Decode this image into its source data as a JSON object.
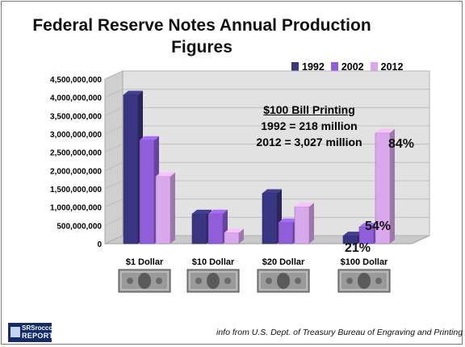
{
  "chart_data": {
    "type": "bar",
    "title_line1": "Federal Reserve Notes Annual Production",
    "title_line2": "Figures",
    "categories": [
      "$1 Dollar",
      "$10 Dollar",
      "$20 Dollar",
      "$100 Dollar"
    ],
    "series": [
      {
        "name": "1992",
        "color": "#3a3580",
        "values": [
          4070000000,
          820000000,
          1380000000,
          218000000
        ]
      },
      {
        "name": "2002",
        "color": "#8f5ed8",
        "values": [
          2830000000,
          820000000,
          580000000,
          460000000
        ]
      },
      {
        "name": "2012",
        "color": "#d9a8ec",
        "values": [
          1840000000,
          300000000,
          1010000000,
          3027000000
        ]
      }
    ],
    "y_ticks": [
      "0",
      "500,000,000",
      "1,000,000,000",
      "1,500,000,000",
      "2,000,000,000",
      "2,500,000,000",
      "3,000,000,000",
      "3,500,000,000",
      "4,000,000,000",
      "4,500,000,000"
    ],
    "ylim": [
      0,
      4500000000
    ],
    "grid": true,
    "legend_position": "top-right"
  },
  "annotation": {
    "heading": "$100 Bill Printing",
    "line1": "1992 = 218 million",
    "line2": "2012 = 3,027 million"
  },
  "percent_labels": {
    "p21": "21%",
    "p54": "54%",
    "p84": "84%"
  },
  "logo": {
    "text1": "SRSrocco",
    "text2": "REPORT"
  },
  "footer": "info from U.S. Dept. of Treasury Bureau of Engraving and Printing"
}
